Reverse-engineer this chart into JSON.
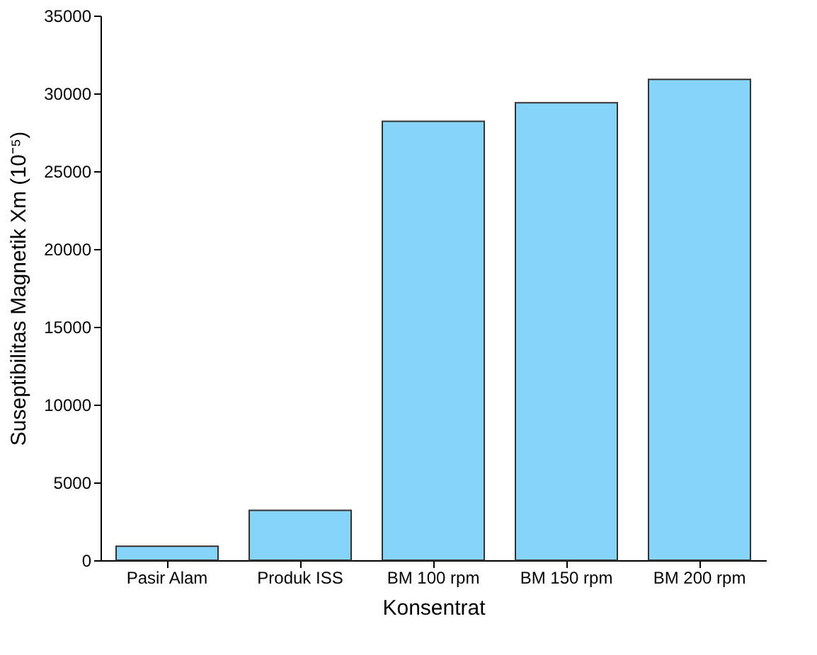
{
  "chart_data": {
    "type": "bar",
    "xlabel": "Konsentrat",
    "ylabel": "Suseptibilitas Magnetik Xm (10⁻⁵)",
    "categories": [
      "Pasir Alam",
      "Produk ISS",
      "BM 100 rpm",
      "BM 150 rpm",
      "BM 200 rpm"
    ],
    "values": [
      900,
      3200,
      28200,
      29400,
      30900
    ],
    "color": "#87d4fa",
    "ylim": [
      0,
      35000
    ],
    "yticks": [
      0,
      5000,
      10000,
      15000,
      20000,
      25000,
      30000,
      35000
    ],
    "grid": false
  }
}
